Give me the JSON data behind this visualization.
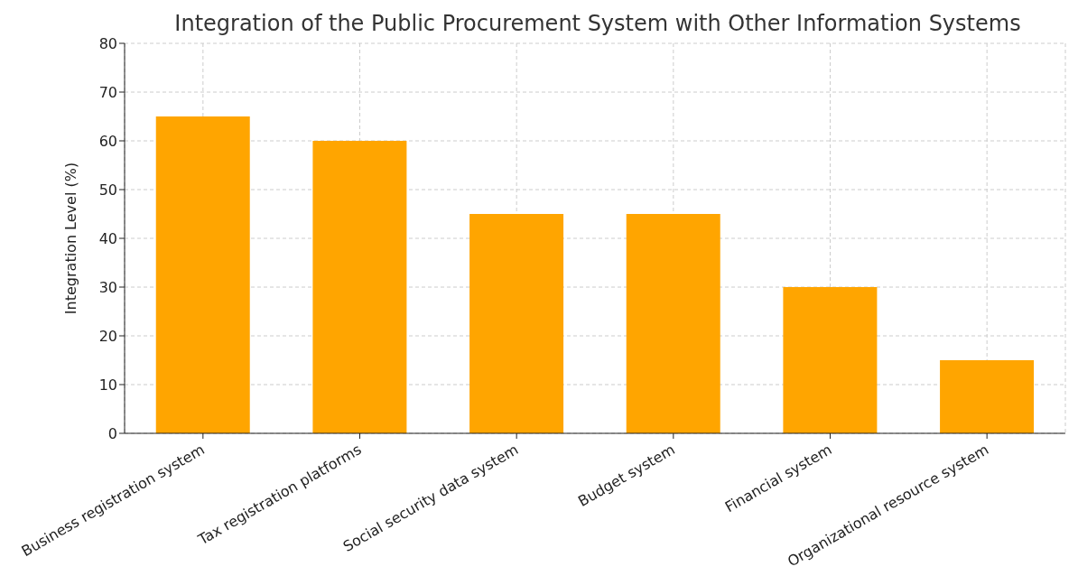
{
  "chart_data": {
    "type": "bar",
    "title": "Integration of the Public Procurement System with Other Information Systems",
    "ylabel": "Integration Level (%)",
    "categories": [
      "Business registration system",
      "Tax registration platforms",
      "Social security data system",
      "Budget system",
      "Financial system",
      "Organizational resource system"
    ],
    "values": [
      65,
      60,
      45,
      45,
      30,
      15
    ],
    "color": "#ffa500",
    "ylim": [
      0,
      80
    ],
    "yticks": [
      0,
      10,
      20,
      30,
      40,
      50,
      60,
      70,
      80
    ],
    "grid": true
  }
}
